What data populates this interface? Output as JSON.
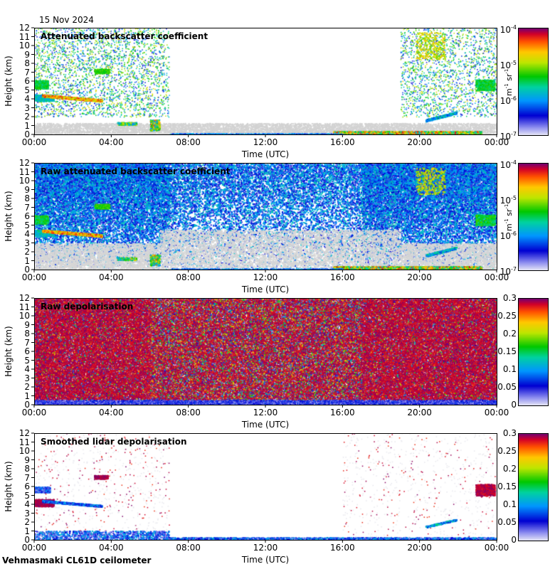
{
  "date": "15 Nov 2024",
  "footer": "Vehmasmaki CL61D ceilometer",
  "chart_data": [
    {
      "type": "heatmap",
      "title": "Attenuated backscatter coefficient",
      "xlabel": "Time (UTC)",
      "ylabel": "Height (km)",
      "xticks": [
        "00:00",
        "04:00",
        "08:00",
        "12:00",
        "16:00",
        "20:00",
        "00:00"
      ],
      "yticks": [
        "0",
        "1",
        "2",
        "3",
        "4",
        "5",
        "6",
        "7",
        "8",
        "9",
        "10",
        "11",
        "12"
      ],
      "xlim_hours": [
        0,
        24
      ],
      "ylim_km": [
        0,
        12
      ],
      "colorbar": {
        "scale": "log",
        "range": [
          1e-07,
          0.0001
        ],
        "ticks": [
          "10^-7",
          "10^-6",
          "10^-5",
          "10^-4"
        ],
        "unit": "m^-1 sr^-1"
      },
      "style": "processed"
    },
    {
      "type": "heatmap",
      "title": "Raw attenuated backscatter coefficient",
      "xlabel": "Time (UTC)",
      "ylabel": "Height (km)",
      "xticks": [
        "00:00",
        "04:00",
        "08:00",
        "12:00",
        "16:00",
        "20:00",
        "00:00"
      ],
      "yticks": [
        "0",
        "1",
        "2",
        "3",
        "4",
        "5",
        "6",
        "7",
        "8",
        "9",
        "10",
        "11",
        "12"
      ],
      "xlim_hours": [
        0,
        24
      ],
      "ylim_km": [
        0,
        12
      ],
      "colorbar": {
        "scale": "log",
        "range": [
          1e-07,
          0.0001
        ],
        "ticks": [
          "10^-7",
          "10^-6",
          "10^-5",
          "10^-4"
        ],
        "unit": "m^-1 sr^-1"
      },
      "style": "raw"
    },
    {
      "type": "heatmap",
      "title": "Raw depolarisation",
      "xlabel": "Time (UTC)",
      "ylabel": "Height (km)",
      "xticks": [
        "00:00",
        "04:00",
        "08:00",
        "12:00",
        "16:00",
        "20:00",
        "00:00"
      ],
      "yticks": [
        "0",
        "1",
        "2",
        "3",
        "4",
        "5",
        "6",
        "7",
        "8",
        "9",
        "10",
        "11",
        "12"
      ],
      "xlim_hours": [
        0,
        24
      ],
      "ylim_km": [
        0,
        12
      ],
      "colorbar": {
        "scale": "linear",
        "range": [
          0,
          0.3
        ],
        "ticks": [
          "0",
          "0.05",
          "0.1",
          "0.15",
          "0.2",
          "0.25",
          "0.3"
        ],
        "unit": ""
      },
      "style": "rawdepol"
    },
    {
      "type": "heatmap",
      "title": "Smoothed lidar depolarisation",
      "xlabel": "Time (UTC)",
      "ylabel": "Height (km)",
      "xticks": [
        "00:00",
        "04:00",
        "08:00",
        "12:00",
        "16:00",
        "20:00",
        "00:00"
      ],
      "yticks": [
        "0",
        "1",
        "2",
        "3",
        "4",
        "5",
        "6",
        "7",
        "8",
        "9",
        "10",
        "11",
        "12"
      ],
      "xlim_hours": [
        0,
        24
      ],
      "ylim_km": [
        0,
        12
      ],
      "colorbar": {
        "scale": "linear",
        "range": [
          0,
          0.3
        ],
        "ticks": [
          "0",
          "0.05",
          "0.1",
          "0.15",
          "0.2",
          "0.25",
          "0.3"
        ],
        "unit": ""
      },
      "style": "depol"
    }
  ]
}
